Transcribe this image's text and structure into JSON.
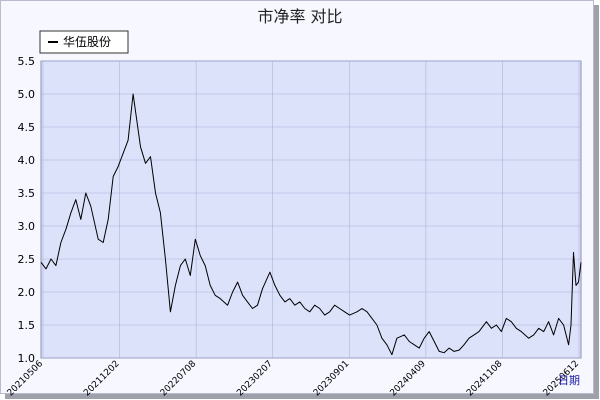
{
  "chart_data": {
    "type": "line",
    "title": "市净率  对比",
    "xlabel": "日期",
    "ylabel": "",
    "ylim": [
      1.0,
      5.5
    ],
    "y_ticks": [
      "1.0",
      "1.5",
      "2.0",
      "2.5",
      "3.0",
      "3.5",
      "4.0",
      "4.5",
      "5.0",
      "5.5"
    ],
    "x_tick_labels": [
      "20210506",
      "20211202",
      "20220708",
      "20230207",
      "20230901",
      "20240409",
      "20241108",
      "20250612"
    ],
    "grid": true,
    "legend_position": "top-left",
    "colors": {
      "plot_background": "#dde2fb",
      "grid": "#aab3d8",
      "line": "#000000"
    },
    "series": [
      {
        "name": "华伍股份",
        "x": [
          "2021-05-06",
          "2021-05-20",
          "2021-06-03",
          "2021-06-17",
          "2021-07-01",
          "2021-07-15",
          "2021-07-29",
          "2021-08-12",
          "2021-08-26",
          "2021-09-09",
          "2021-09-23",
          "2021-10-14",
          "2021-10-28",
          "2021-11-11",
          "2021-11-25",
          "2021-12-09",
          "2021-12-23",
          "2022-01-06",
          "2022-01-20",
          "2022-02-10",
          "2022-02-24",
          "2022-03-10",
          "2022-03-24",
          "2022-04-07",
          "2022-04-21",
          "2022-05-05",
          "2022-05-19",
          "2022-06-02",
          "2022-06-16",
          "2022-06-30",
          "2022-07-14",
          "2022-07-28",
          "2022-08-11",
          "2022-08-25",
          "2022-09-08",
          "2022-09-22",
          "2022-10-13",
          "2022-10-27",
          "2022-11-10",
          "2022-11-24",
          "2022-12-08",
          "2022-12-22",
          "2023-01-05",
          "2023-01-19",
          "2023-02-09",
          "2023-02-23",
          "2023-03-09",
          "2023-03-23",
          "2023-04-06",
          "2023-04-20",
          "2023-05-04",
          "2023-05-18",
          "2023-06-01",
          "2023-06-15",
          "2023-06-29",
          "2023-07-13",
          "2023-07-27",
          "2023-08-10",
          "2023-08-24",
          "2023-09-07",
          "2023-09-21",
          "2023-10-12",
          "2023-10-26",
          "2023-11-09",
          "2023-11-23",
          "2023-12-07",
          "2023-12-21",
          "2024-01-04",
          "2024-01-18",
          "2024-02-01",
          "2024-02-22",
          "2024-03-07",
          "2024-03-21",
          "2024-04-04",
          "2024-04-18",
          "2024-05-02",
          "2024-05-16",
          "2024-05-30",
          "2024-06-13",
          "2024-06-27",
          "2024-07-11",
          "2024-07-25",
          "2024-08-08",
          "2024-08-22",
          "2024-09-05",
          "2024-09-19",
          "2024-10-10",
          "2024-10-24",
          "2024-11-07",
          "2024-11-21",
          "2024-12-05",
          "2024-12-19",
          "2025-01-02",
          "2025-01-16",
          "2025-02-06",
          "2025-02-20",
          "2025-03-06",
          "2025-03-20",
          "2025-04-03",
          "2025-04-17",
          "2025-05-01",
          "2025-05-15",
          "2025-05-29",
          "2025-06-05",
          "2025-06-12",
          "2025-06-19",
          "2025-06-26",
          "2025-07-03"
        ],
        "values": [
          2.45,
          2.35,
          2.5,
          2.4,
          2.75,
          2.95,
          3.2,
          3.4,
          3.1,
          3.5,
          3.3,
          2.8,
          2.75,
          3.1,
          3.75,
          3.9,
          4.1,
          4.3,
          5.0,
          4.2,
          3.95,
          4.05,
          3.5,
          3.2,
          2.5,
          1.7,
          2.1,
          2.4,
          2.5,
          2.25,
          2.8,
          2.55,
          2.4,
          2.1,
          1.95,
          1.9,
          1.8,
          2.0,
          2.15,
          1.95,
          1.85,
          1.75,
          1.8,
          2.05,
          2.3,
          2.1,
          1.95,
          1.85,
          1.9,
          1.8,
          1.85,
          1.75,
          1.7,
          1.8,
          1.75,
          1.65,
          1.7,
          1.8,
          1.75,
          1.7,
          1.65,
          1.7,
          1.75,
          1.7,
          1.6,
          1.5,
          1.3,
          1.2,
          1.05,
          1.3,
          1.35,
          1.25,
          1.2,
          1.15,
          1.3,
          1.4,
          1.25,
          1.1,
          1.08,
          1.15,
          1.1,
          1.12,
          1.2,
          1.3,
          1.35,
          1.4,
          1.55,
          1.45,
          1.5,
          1.4,
          1.6,
          1.55,
          1.45,
          1.4,
          1.3,
          1.35,
          1.45,
          1.4,
          1.55,
          1.35,
          1.6,
          1.5,
          1.2,
          1.5,
          2.6,
          2.1,
          2.15,
          2.45
        ]
      }
    ]
  }
}
